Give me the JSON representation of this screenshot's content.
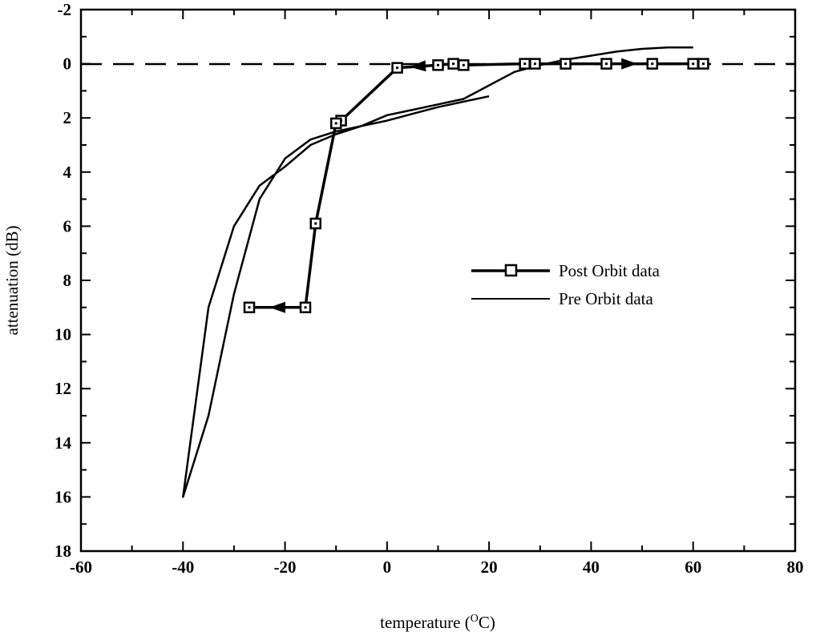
{
  "chart_data": {
    "type": "line",
    "title": "",
    "xlabel": "temperature (°C)",
    "xlabel_parts": {
      "prefix": "temperature (",
      "superscript": "O",
      "suffix": "C)"
    },
    "ylabel": "attenuation (dB)",
    "xlim": [
      -60,
      80
    ],
    "ylim": [
      -2,
      18
    ],
    "y_inverted": true,
    "xticks": [
      -60,
      -40,
      -20,
      0,
      20,
      40,
      60,
      80
    ],
    "yticks": [
      -2,
      0,
      2,
      4,
      6,
      8,
      10,
      12,
      14,
      16,
      18
    ],
    "grid": false,
    "reference_line": {
      "y": 0,
      "style": "dashed"
    },
    "legend_position": "center-right",
    "series": [
      {
        "name": "Post Orbit data",
        "marker": "square",
        "x": [
          62,
          60,
          52,
          43,
          35,
          29,
          27,
          15,
          13,
          10,
          2,
          -9,
          -10,
          -14,
          -16,
          -27
        ],
        "y": [
          0,
          0,
          0,
          0,
          0,
          0,
          0,
          0.05,
          0,
          0.05,
          0.15,
          2.1,
          2.2,
          5.9,
          9,
          9
        ]
      },
      {
        "name": "Pre Orbit data",
        "marker": "none",
        "x": [
          20,
          15,
          10,
          5,
          0,
          -5,
          -10,
          -15,
          -20,
          -25,
          -30,
          -35,
          -40,
          -35,
          -30,
          -25,
          -20,
          -15,
          -10,
          -5,
          0,
          5,
          10,
          15,
          20,
          25,
          30,
          35,
          40,
          45,
          50,
          55,
          60
        ],
        "y": [
          1.2,
          1.4,
          1.6,
          1.85,
          2.1,
          2.3,
          2.5,
          2.8,
          3.5,
          5,
          8.5,
          13,
          16,
          9,
          6,
          4.5,
          3.8,
          3.0,
          2.6,
          2.3,
          1.9,
          1.7,
          1.5,
          1.3,
          0.8,
          0.3,
          0.05,
          -0.15,
          -0.3,
          -0.45,
          -0.55,
          -0.6,
          -0.6
        ]
      }
    ]
  }
}
